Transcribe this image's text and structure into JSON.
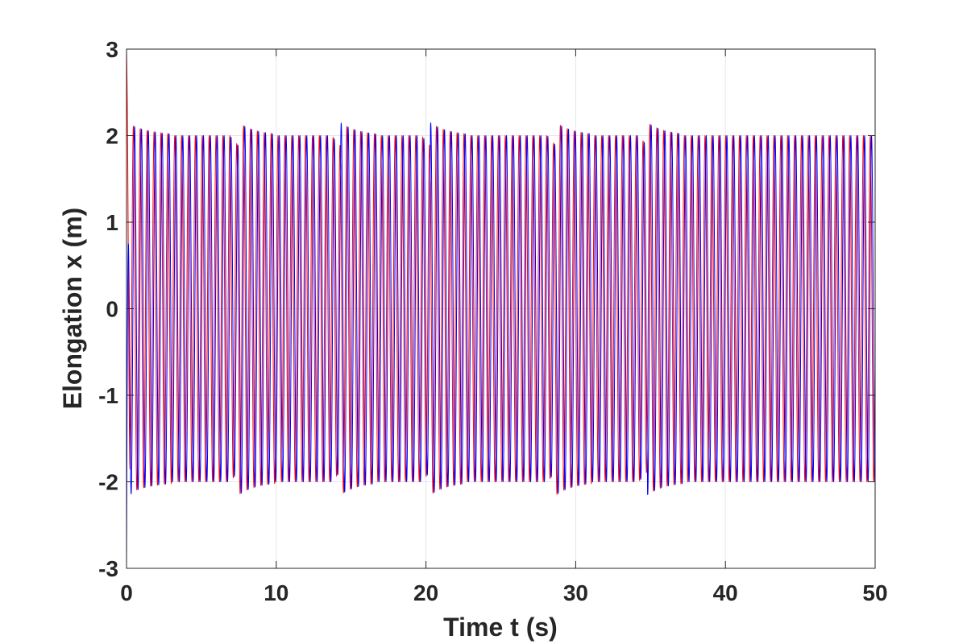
{
  "chart_data": {
    "type": "line",
    "title": "",
    "xlabel": "Time t (s)",
    "ylabel": "Elongation x (m)",
    "xlim": [
      0,
      50
    ],
    "ylim": [
      -3,
      3
    ],
    "xticks": [
      0,
      10,
      20,
      30,
      40,
      50
    ],
    "yticks": [
      -3,
      -2,
      -1,
      0,
      1,
      2,
      3
    ],
    "xtick_labels": [
      "0",
      "10",
      "20",
      "30",
      "40",
      "50"
    ],
    "ytick_labels": [
      "-3",
      "-2",
      "-1",
      "0",
      "1",
      "2",
      "3"
    ],
    "grid": true,
    "legend": "none",
    "oscillation": {
      "initial_value": 3,
      "steady_amplitude": 2,
      "peak_amplitude": 2.15,
      "period": 0.46,
      "lag_between_series": 0.08,
      "amplitude_dips_at_t": [
        7.5,
        14.3,
        20.3,
        28.7,
        34.8
      ]
    },
    "series": [
      {
        "color": "#ff0000",
        "initial_value": 3
      },
      {
        "color": "#0000ff",
        "initial_value": -3
      }
    ]
  }
}
